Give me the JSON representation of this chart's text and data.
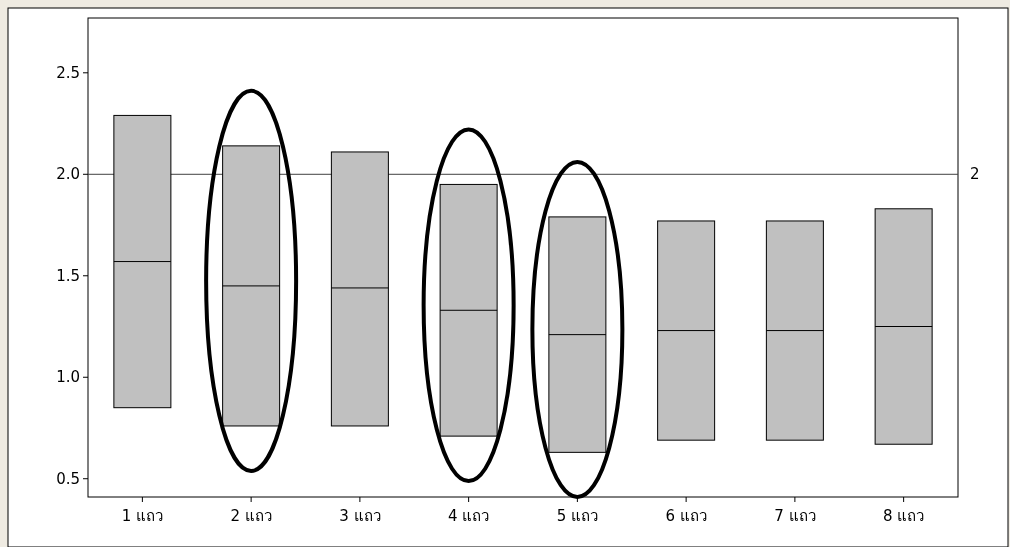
{
  "chart_data": {
    "type": "box",
    "categories": [
      "1 แถว",
      "2 แถว",
      "3 แถว",
      "4 แถว",
      "5 แถว",
      "6 แถว",
      "7 แถว",
      "8 แถว"
    ],
    "boxes": [
      {
        "low": 0.85,
        "q1": 0.85,
        "median": 1.57,
        "q3": 2.29,
        "high": 2.29
      },
      {
        "low": 0.76,
        "q1": 0.76,
        "median": 1.45,
        "q3": 2.14,
        "high": 2.14
      },
      {
        "low": 0.76,
        "q1": 0.76,
        "median": 1.44,
        "q3": 2.11,
        "high": 2.11
      },
      {
        "low": 0.71,
        "q1": 0.71,
        "median": 1.33,
        "q3": 1.95,
        "high": 1.95
      },
      {
        "low": 0.63,
        "q1": 0.63,
        "median": 1.21,
        "q3": 1.79,
        "high": 1.79
      },
      {
        "low": 0.69,
        "q1": 0.69,
        "median": 1.23,
        "q3": 1.77,
        "high": 1.77
      },
      {
        "low": 0.69,
        "q1": 0.69,
        "median": 1.23,
        "q3": 1.77,
        "high": 1.77
      },
      {
        "low": 0.67,
        "q1": 0.67,
        "median": 1.25,
        "q3": 1.83,
        "high": 1.83
      }
    ],
    "color": "#c0c0c0",
    "ylim": [
      0.41,
      2.77
    ],
    "yticks": [
      {
        "value": 0.5,
        "label": "0.5"
      },
      {
        "value": 1,
        "label": "1.0"
      },
      {
        "value": 1.5,
        "label": "1.5"
      },
      {
        "value": 2,
        "label": "2.0"
      },
      {
        "value": 2.5,
        "label": "2.5"
      }
    ],
    "ref_lines": [
      {
        "axis": "y",
        "value": 2,
        "label": "2",
        "color": "#404040"
      }
    ],
    "grid": false
  }
}
